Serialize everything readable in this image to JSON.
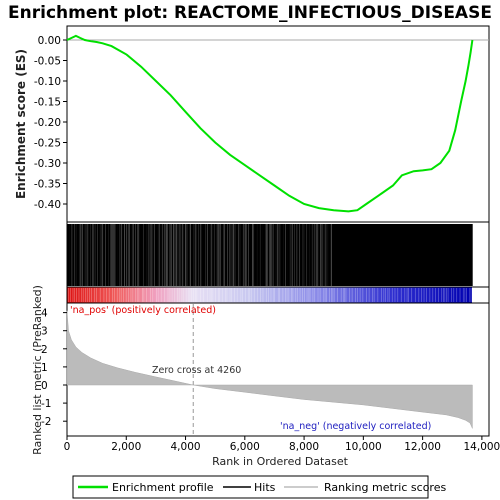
{
  "title": "Enrichment plot: REACTOME_INFECTIOUS_DISEASE",
  "legend": {
    "items": [
      {
        "label": "Enrichment profile",
        "color": "#00e000"
      },
      {
        "label": "Hits",
        "color": "#000000"
      },
      {
        "label": "Ranking metric scores",
        "color": "#bbbbbb"
      }
    ]
  },
  "chart_data": [
    {
      "type": "line",
      "ylabel": "Enrichment score (ES)",
      "ylim": [
        -0.43,
        0.02
      ],
      "xlim": [
        0,
        13700
      ],
      "yticks": [
        "0.00",
        "-0.05",
        "-0.10",
        "-0.15",
        "-0.20",
        "-0.25",
        "-0.30",
        "-0.35",
        "-0.40"
      ],
      "ytick_values": [
        0,
        -0.05,
        -0.1,
        -0.15,
        -0.2,
        -0.25,
        -0.3,
        -0.35,
        -0.4
      ],
      "grid": false,
      "series": [
        {
          "name": "Enrichment profile",
          "color": "#00e000",
          "x": [
            0,
            150,
            300,
            450,
            600,
            800,
            1000,
            1200,
            1500,
            2000,
            2500,
            3000,
            3500,
            4000,
            4500,
            5000,
            5500,
            6000,
            6500,
            7000,
            7500,
            8000,
            8500,
            9000,
            9500,
            9800,
            10100,
            10500,
            11000,
            11300,
            11700,
            12000,
            12300,
            12600,
            12900,
            13100,
            13300,
            13450,
            13550,
            13620,
            13680
          ],
          "y": [
            0.0,
            0.005,
            0.01,
            0.005,
            0.0,
            -0.003,
            -0.005,
            -0.008,
            -0.015,
            -0.035,
            -0.065,
            -0.1,
            -0.135,
            -0.175,
            -0.215,
            -0.25,
            -0.28,
            -0.305,
            -0.33,
            -0.355,
            -0.38,
            -0.4,
            -0.41,
            -0.415,
            -0.418,
            -0.415,
            -0.4,
            -0.38,
            -0.355,
            -0.33,
            -0.32,
            -0.318,
            -0.315,
            -0.3,
            -0.27,
            -0.22,
            -0.15,
            -0.1,
            -0.06,
            -0.03,
            0.0
          ]
        }
      ]
    },
    {
      "type": "line",
      "ylabel": "Ranked list metric (PreRanked)",
      "xlabel": "Rank in Ordered Dataset",
      "xlim": [
        0,
        13700
      ],
      "ylim": [
        -2.6,
        4.3
      ],
      "yticks": [
        "4",
        "3",
        "2",
        "1",
        "0",
        "-1",
        "-2"
      ],
      "ytick_values": [
        4,
        3,
        2,
        1,
        0,
        -1,
        -2
      ],
      "xticks": [
        "0",
        "2,000",
        "4,000",
        "6,000",
        "8,000",
        "10,000",
        "12,000",
        "14,000"
      ],
      "xtick_values": [
        0,
        2000,
        4000,
        6000,
        8000,
        10000,
        12000,
        14000
      ],
      "zero_cross": 4260,
      "annotations": [
        {
          "text": "'na_pos' (positively correlated)",
          "color": "#e00000"
        },
        {
          "text": "Zero cross at 4260",
          "color": "#333333"
        },
        {
          "text": "'na_neg' (negatively correlated)",
          "color": "#2020c0"
        }
      ],
      "series": [
        {
          "name": "Ranking metric scores",
          "color": "#bbbbbb",
          "x": [
            0,
            50,
            150,
            300,
            500,
            800,
            1200,
            1700,
            2300,
            3000,
            3700,
            4260,
            5000,
            6000,
            7000,
            8000,
            9000,
            10000,
            11000,
            12000,
            12800,
            13200,
            13450,
            13600,
            13680
          ],
          "y": [
            4.1,
            3.0,
            2.5,
            2.1,
            1.8,
            1.5,
            1.2,
            0.95,
            0.7,
            0.45,
            0.2,
            0.0,
            -0.2,
            -0.4,
            -0.6,
            -0.8,
            -0.95,
            -1.1,
            -1.3,
            -1.5,
            -1.65,
            -1.8,
            -1.95,
            -2.1,
            -2.4
          ]
        }
      ]
    }
  ]
}
